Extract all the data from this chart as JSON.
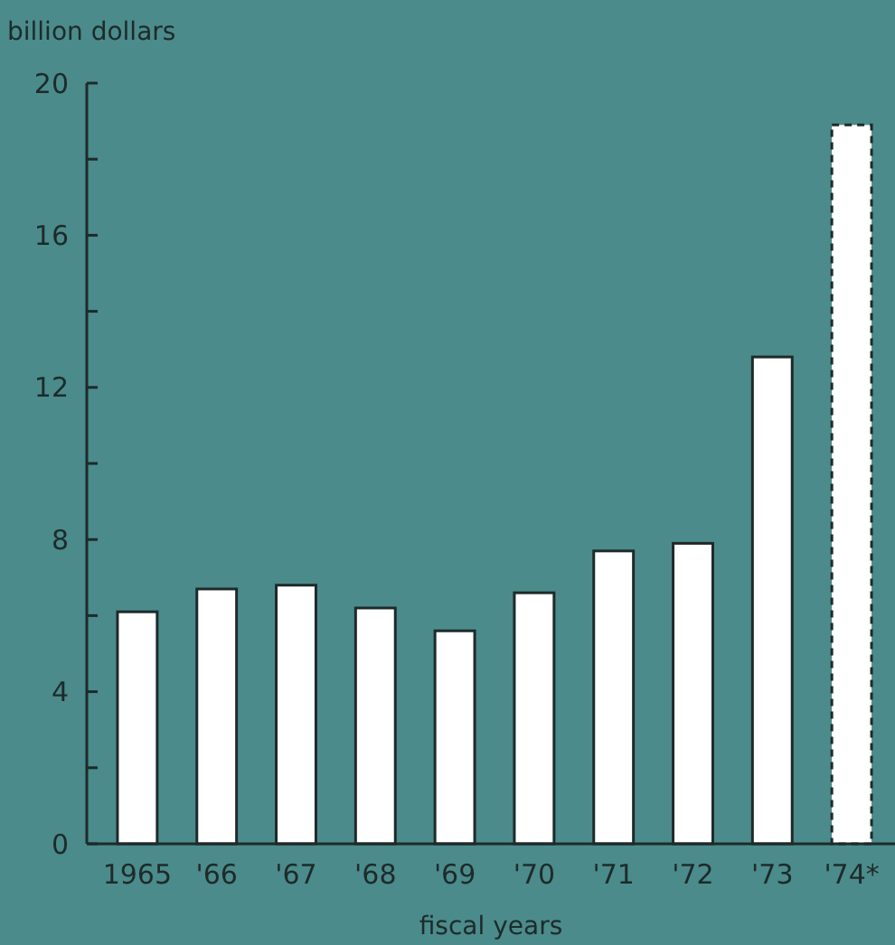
{
  "chart_data": {
    "type": "bar",
    "stacked": true,
    "ylabel": "billion dollars",
    "xlabel": "fiscal years",
    "categories": [
      "1965",
      "'66",
      "'67",
      "'68",
      "'69",
      "'70",
      "'71",
      "'72",
      "'73",
      "'74*"
    ],
    "series": [
      {
        "color": "#ffffff",
        "line_style": "solid",
        "values": [
          6.1,
          6.7,
          6.8,
          6.2,
          5.6,
          6.6,
          7.7,
          7.9,
          12.8,
          null
        ]
      },
      {
        "color": "#ffffff",
        "line_style": "dashed",
        "values": [
          null,
          null,
          null,
          null,
          null,
          null,
          null,
          null,
          null,
          18.9
        ]
      }
    ],
    "ylim": [
      0,
      20
    ],
    "yticks": [
      0,
      {
        "value": 2,
        "label": null
      },
      4,
      {
        "value": 6,
        "label": null
      },
      8,
      {
        "value": 10,
        "label": null
      },
      12,
      {
        "value": 14,
        "label": null
      },
      16,
      {
        "value": 18,
        "label": null
      },
      20
    ],
    "grid": false
  }
}
